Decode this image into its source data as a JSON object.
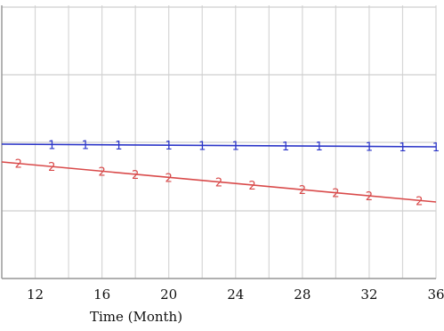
{
  "chart_data": {
    "type": "line",
    "xlabel": "Time (Month)",
    "x_ticks": [
      12,
      16,
      20,
      24,
      28,
      32,
      36
    ],
    "xlim": [
      10,
      36
    ],
    "grid": true,
    "series": [
      {
        "marker": "1",
        "color": "#2b35c8",
        "x": [
          10,
          36
        ],
        "y": [
          162,
          165
        ],
        "marker_x": [
          13,
          15,
          17,
          20,
          22,
          24,
          27,
          29,
          32,
          34,
          36
        ]
      },
      {
        "marker": "2",
        "color": "#d94a4a",
        "x": [
          10,
          36
        ],
        "y": [
          182,
          227
        ],
        "marker_x": [
          11,
          13,
          16,
          18,
          20,
          23,
          25,
          28,
          30,
          32,
          35
        ]
      }
    ]
  }
}
